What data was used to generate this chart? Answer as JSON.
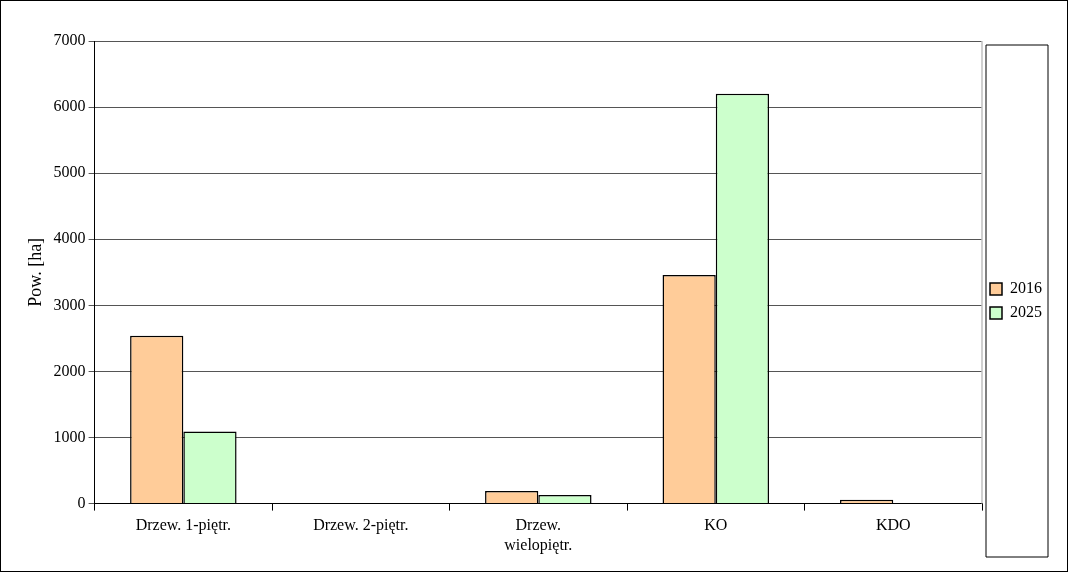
{
  "chart_data": {
    "type": "bar",
    "ylabel": "Pow. [ha]",
    "categories": [
      "Drzew. 1-piętr.",
      "Drzew. 2-piętr.",
      "Drzew. wielopiętr.",
      "KO",
      "KDO"
    ],
    "series": [
      {
        "name": "2016",
        "color": "#ffcc99",
        "values": [
          2540,
          0,
          190,
          3460,
          60
        ]
      },
      {
        "name": "2025",
        "color": "#ccffcc",
        "values": [
          1090,
          0,
          130,
          6200,
          0
        ]
      }
    ],
    "ylim": [
      0,
      7000
    ],
    "yticks": [
      0,
      1000,
      2000,
      3000,
      4000,
      5000,
      6000,
      7000
    ],
    "grid": "y",
    "legend": "right"
  }
}
